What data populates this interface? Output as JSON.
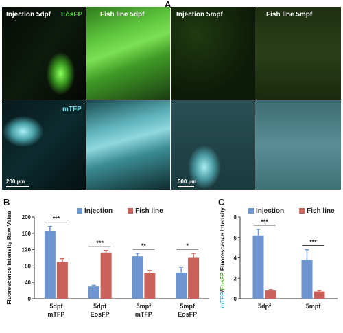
{
  "panel_a": {
    "letter": "A",
    "columns": [
      "Injection 5dpf",
      "Fish line 5dpf",
      "Injection 5mpf",
      "Fish line 5mpf"
    ],
    "channel_labels": {
      "top": "EosFP",
      "bottom": "mTFP"
    },
    "scalebars": [
      "200 µm",
      "500 µm"
    ],
    "colors": {
      "eos": "#5fd84a",
      "mtfp": "#6fd6e0"
    }
  },
  "panel_b": {
    "letter": "B"
  },
  "panel_c": {
    "letter": "C"
  },
  "chart_data": [
    {
      "type": "bar",
      "panel": "B",
      "categories": [
        [
          "5dpf",
          "mTFP"
        ],
        [
          "5dpf",
          "EosFP"
        ],
        [
          "5mpf",
          "mTFP"
        ],
        [
          "5mpf",
          "EosFP"
        ]
      ],
      "series": [
        {
          "name": "Injection",
          "color": "#6d95cf",
          "values": [
            166,
            30,
            104,
            64
          ],
          "errors": [
            11,
            3,
            7,
            12
          ]
        },
        {
          "name": "Fish line",
          "color": "#c8625b",
          "values": [
            90,
            113,
            63,
            100
          ],
          "errors": [
            8,
            5,
            6,
            11
          ]
        }
      ],
      "significance": [
        "***",
        "***",
        "**",
        "*"
      ],
      "ylabel": "Fluorescence Intensity Raw Value",
      "ylim": [
        0,
        200
      ],
      "yticks": [
        0,
        40,
        80,
        120,
        160,
        200
      ],
      "legend": "top"
    },
    {
      "type": "bar",
      "panel": "C",
      "categories": [
        [
          "5dpf"
        ],
        [
          "5mpf"
        ]
      ],
      "series": [
        {
          "name": "Injection",
          "color": "#6d95cf",
          "values": [
            6.2,
            3.8
          ],
          "errors": [
            0.6,
            1.0
          ]
        },
        {
          "name": "Fish line",
          "color": "#c8625b",
          "values": [
            0.8,
            0.7
          ],
          "errors": [
            0.08,
            0.1
          ]
        }
      ],
      "significance": [
        "***",
        "***"
      ],
      "ylabel_parts": [
        {
          "text": "mTFP",
          "color": "#4fc3e8"
        },
        {
          "text": "/",
          "color": "#222222"
        },
        {
          "text": "EosFP",
          "color": "#5aa832"
        },
        {
          "text": " Fluorescence Intensity",
          "color": "#222222"
        }
      ],
      "ylim": [
        0,
        8
      ],
      "yticks": [
        0,
        2,
        4,
        6,
        8
      ],
      "legend": "top"
    }
  ]
}
